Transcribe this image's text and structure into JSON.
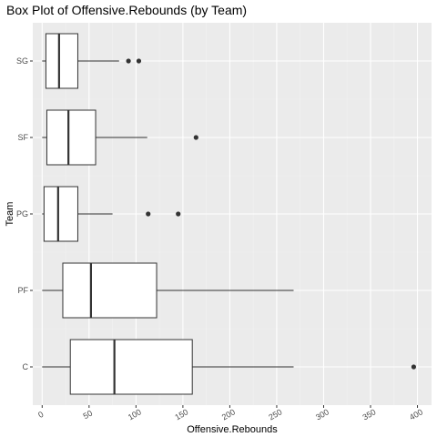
{
  "chart_data": {
    "type": "boxplot",
    "orientation": "horizontal",
    "title": "Box Plot of Offensive.Rebounds (by Team)",
    "xlabel": "Offensive.Rebounds",
    "ylabel": "Team",
    "xlim": [
      -10,
      415
    ],
    "x_ticks": [
      0,
      50,
      100,
      150,
      200,
      250,
      300,
      350,
      400
    ],
    "x_tick_labels": [
      "0",
      "50",
      "100",
      "150",
      "200",
      "250",
      "300",
      "350",
      "400"
    ],
    "categories": [
      "SG",
      "SF",
      "PG",
      "PF",
      "C"
    ],
    "boxes": [
      {
        "team": "SG",
        "min": 0,
        "q1": 4,
        "median": 18,
        "q3": 38,
        "max": 82,
        "outliers": [
          92,
          103
        ]
      },
      {
        "team": "SF",
        "min": 0,
        "q1": 5,
        "median": 28,
        "q3": 57,
        "max": 112,
        "outliers": [
          164
        ]
      },
      {
        "team": "PG",
        "min": 0,
        "q1": 2,
        "median": 17,
        "q3": 38,
        "max": 75,
        "outliers": [
          113,
          145
        ]
      },
      {
        "team": "PF",
        "min": 0,
        "q1": 22,
        "median": 52,
        "q3": 122,
        "max": 268,
        "outliers": []
      },
      {
        "team": "C",
        "min": 0,
        "q1": 30,
        "median": 77,
        "q3": 160,
        "max": 268,
        "outliers": [
          396
        ]
      }
    ],
    "grid": true,
    "colors": {
      "panel_bg": "#ebebeb",
      "grid_major": "#ffffff",
      "grid_minor": "#f2f2f2",
      "box_fill": "#ffffff",
      "box_line": "#333333",
      "outlier": "#333333"
    }
  }
}
